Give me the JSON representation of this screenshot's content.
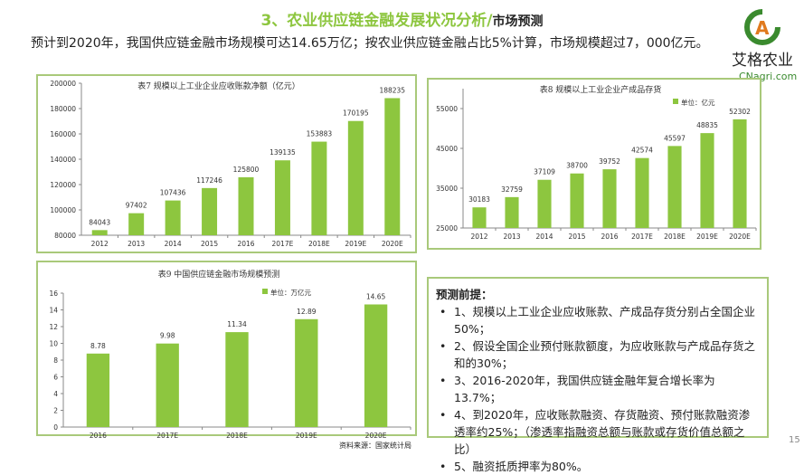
{
  "header": {
    "title_green": "3、农业供应链金融发展状况分析/",
    "title_black": "市场预测",
    "subtitle": "预计到2020年，我国供应链金融市场规模可达14.65万亿；按农业供应链金融占比5%计算，市场规模超过7，000亿元。"
  },
  "logo": {
    "text": "艾格农业",
    "url_text": "CNagri.com",
    "colors": {
      "green": "#3a8a2e",
      "orange": "#e07a1f"
    }
  },
  "colors": {
    "bar": "#8dc63f",
    "border": "#a9c97a",
    "title_green": "#8dc63f"
  },
  "chart_data": [
    {
      "type": "bar",
      "title": "表7 规模以上工业企业应收账款净额（亿元）",
      "categories": [
        "2012",
        "2013",
        "2014",
        "2015",
        "2016",
        "2017E",
        "2018E",
        "2019E",
        "2020E"
      ],
      "values": [
        84043,
        97402,
        107436,
        117246,
        125800,
        139135,
        153883,
        170195,
        188235
      ],
      "ylim": [
        80000,
        200000
      ],
      "yticks": [
        80000,
        100000,
        120000,
        140000,
        160000,
        180000,
        200000
      ],
      "grid": false
    },
    {
      "type": "bar",
      "title": "表8 规模以上工业企业产成品存货",
      "legend": "单位：亿元",
      "categories": [
        "2012",
        "2013",
        "2014",
        "2015",
        "2016",
        "2017E",
        "2018E",
        "2019E",
        "2020E"
      ],
      "values": [
        30183,
        32759,
        37109,
        38700,
        39752,
        42574,
        45597,
        48835,
        52302
      ],
      "ylim": [
        25000,
        60000
      ],
      "yticks": [
        25000,
        35000,
        45000,
        55000
      ],
      "grid": false
    },
    {
      "type": "bar",
      "title": "表9 中国供应链金融市场规模预测",
      "legend": "单位：万亿元",
      "categories": [
        "2016",
        "2017E",
        "2018E",
        "2019E",
        "2020E"
      ],
      "values": [
        8.78,
        9.98,
        11.34,
        12.89,
        14.65
      ],
      "ylim": [
        0,
        16
      ],
      "yticks": [
        0,
        2,
        4,
        6,
        8,
        10,
        12,
        14,
        16
      ],
      "grid": false
    }
  ],
  "notes": {
    "heading": "预测前提：",
    "items": [
      "1、规模以上工业企业应收账款、产成品存货分别占全国企业50%；",
      "2、假设全国企业预付账款额度，为应收账款与产成品存货之和的30%；",
      "3、2016-2020年，我国供应链金融年复合增长率为13.7%；",
      "4、到2020年，应收账款融资、存货融资、预付账款融资渗透率约25%；（渗透率指融资总额与账款或存货价值总额之比）",
      "5、融资抵质押率为80%。"
    ]
  },
  "footer": {
    "source": "资料来源：国家统计局",
    "page": "15"
  }
}
